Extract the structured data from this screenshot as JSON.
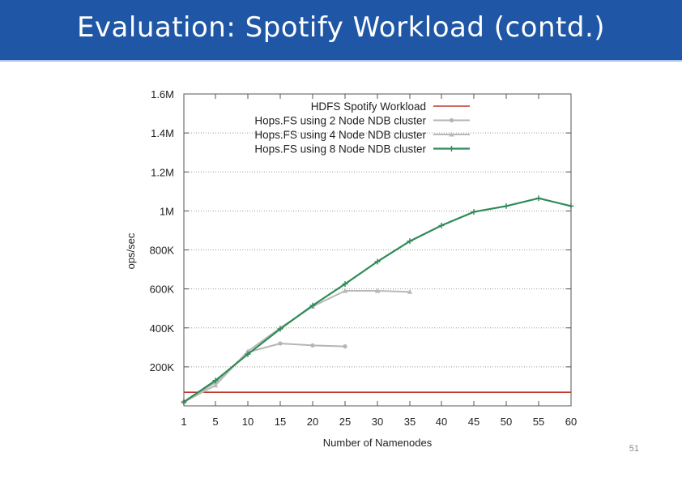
{
  "slide": {
    "title": "Evaluation: Spotify Workload (contd.)",
    "page_number": "51",
    "colors": {
      "title_bg": "#1f57a6",
      "hdfs": "#c0392b",
      "hops2": "#b5b5b5",
      "hops4": "#b9b9b9",
      "hops8": "#2e8b57"
    }
  },
  "chart_data": {
    "type": "line",
    "title": "",
    "xlabel": "Number of Namenodes",
    "ylabel": "ops/sec",
    "x_ticks": [
      "1",
      "5",
      "10",
      "15",
      "20",
      "25",
      "30",
      "35",
      "40",
      "45",
      "50",
      "55",
      "60"
    ],
    "y_ticks": [
      {
        "value": 200000,
        "label": "200K"
      },
      {
        "value": 400000,
        "label": "400K"
      },
      {
        "value": 600000,
        "label": "600K"
      },
      {
        "value": 800000,
        "label": "800K"
      },
      {
        "value": 1000000,
        "label": "1M"
      },
      {
        "value": 1200000,
        "label": "1.2M"
      },
      {
        "value": 1400000,
        "label": "1.4M"
      },
      {
        "value": 1600000,
        "label": "1.6M"
      }
    ],
    "xlim": [
      1,
      60
    ],
    "ylim": [
      0,
      1600000
    ],
    "grid": "horizontal dotted",
    "legend_position": "top-right",
    "series": [
      {
        "name": "HDFS Spotify Workload",
        "color": "#c0392b",
        "marker": "none",
        "points": [
          [
            1,
            70000
          ],
          [
            60,
            70000
          ]
        ]
      },
      {
        "name": "Hops.FS using 2 Node NDB cluster",
        "color": "#b5b5b5",
        "marker": "circle",
        "points": [
          [
            1,
            20000
          ],
          [
            5,
            120000
          ],
          [
            10,
            275000
          ],
          [
            15,
            320000
          ],
          [
            20,
            310000
          ],
          [
            25,
            305000
          ]
        ]
      },
      {
        "name": "Hops.FS using 4 Node NDB cluster",
        "color": "#b9b9b9",
        "marker": "triangle",
        "points": [
          [
            1,
            20000
          ],
          [
            5,
            105000
          ],
          [
            10,
            280000
          ],
          [
            15,
            400000
          ],
          [
            20,
            510000
          ],
          [
            25,
            590000
          ],
          [
            30,
            590000
          ],
          [
            35,
            585000
          ]
        ]
      },
      {
        "name": "Hops.FS using 8 Node NDB cluster",
        "color": "#2e8b57",
        "marker": "plus",
        "points": [
          [
            1,
            20000
          ],
          [
            5,
            130000
          ],
          [
            10,
            265000
          ],
          [
            15,
            395000
          ],
          [
            20,
            515000
          ],
          [
            25,
            625000
          ],
          [
            30,
            740000
          ],
          [
            35,
            845000
          ],
          [
            40,
            925000
          ],
          [
            45,
            995000
          ],
          [
            50,
            1025000
          ],
          [
            55,
            1065000
          ],
          [
            60,
            1025000
          ]
        ]
      }
    ]
  }
}
